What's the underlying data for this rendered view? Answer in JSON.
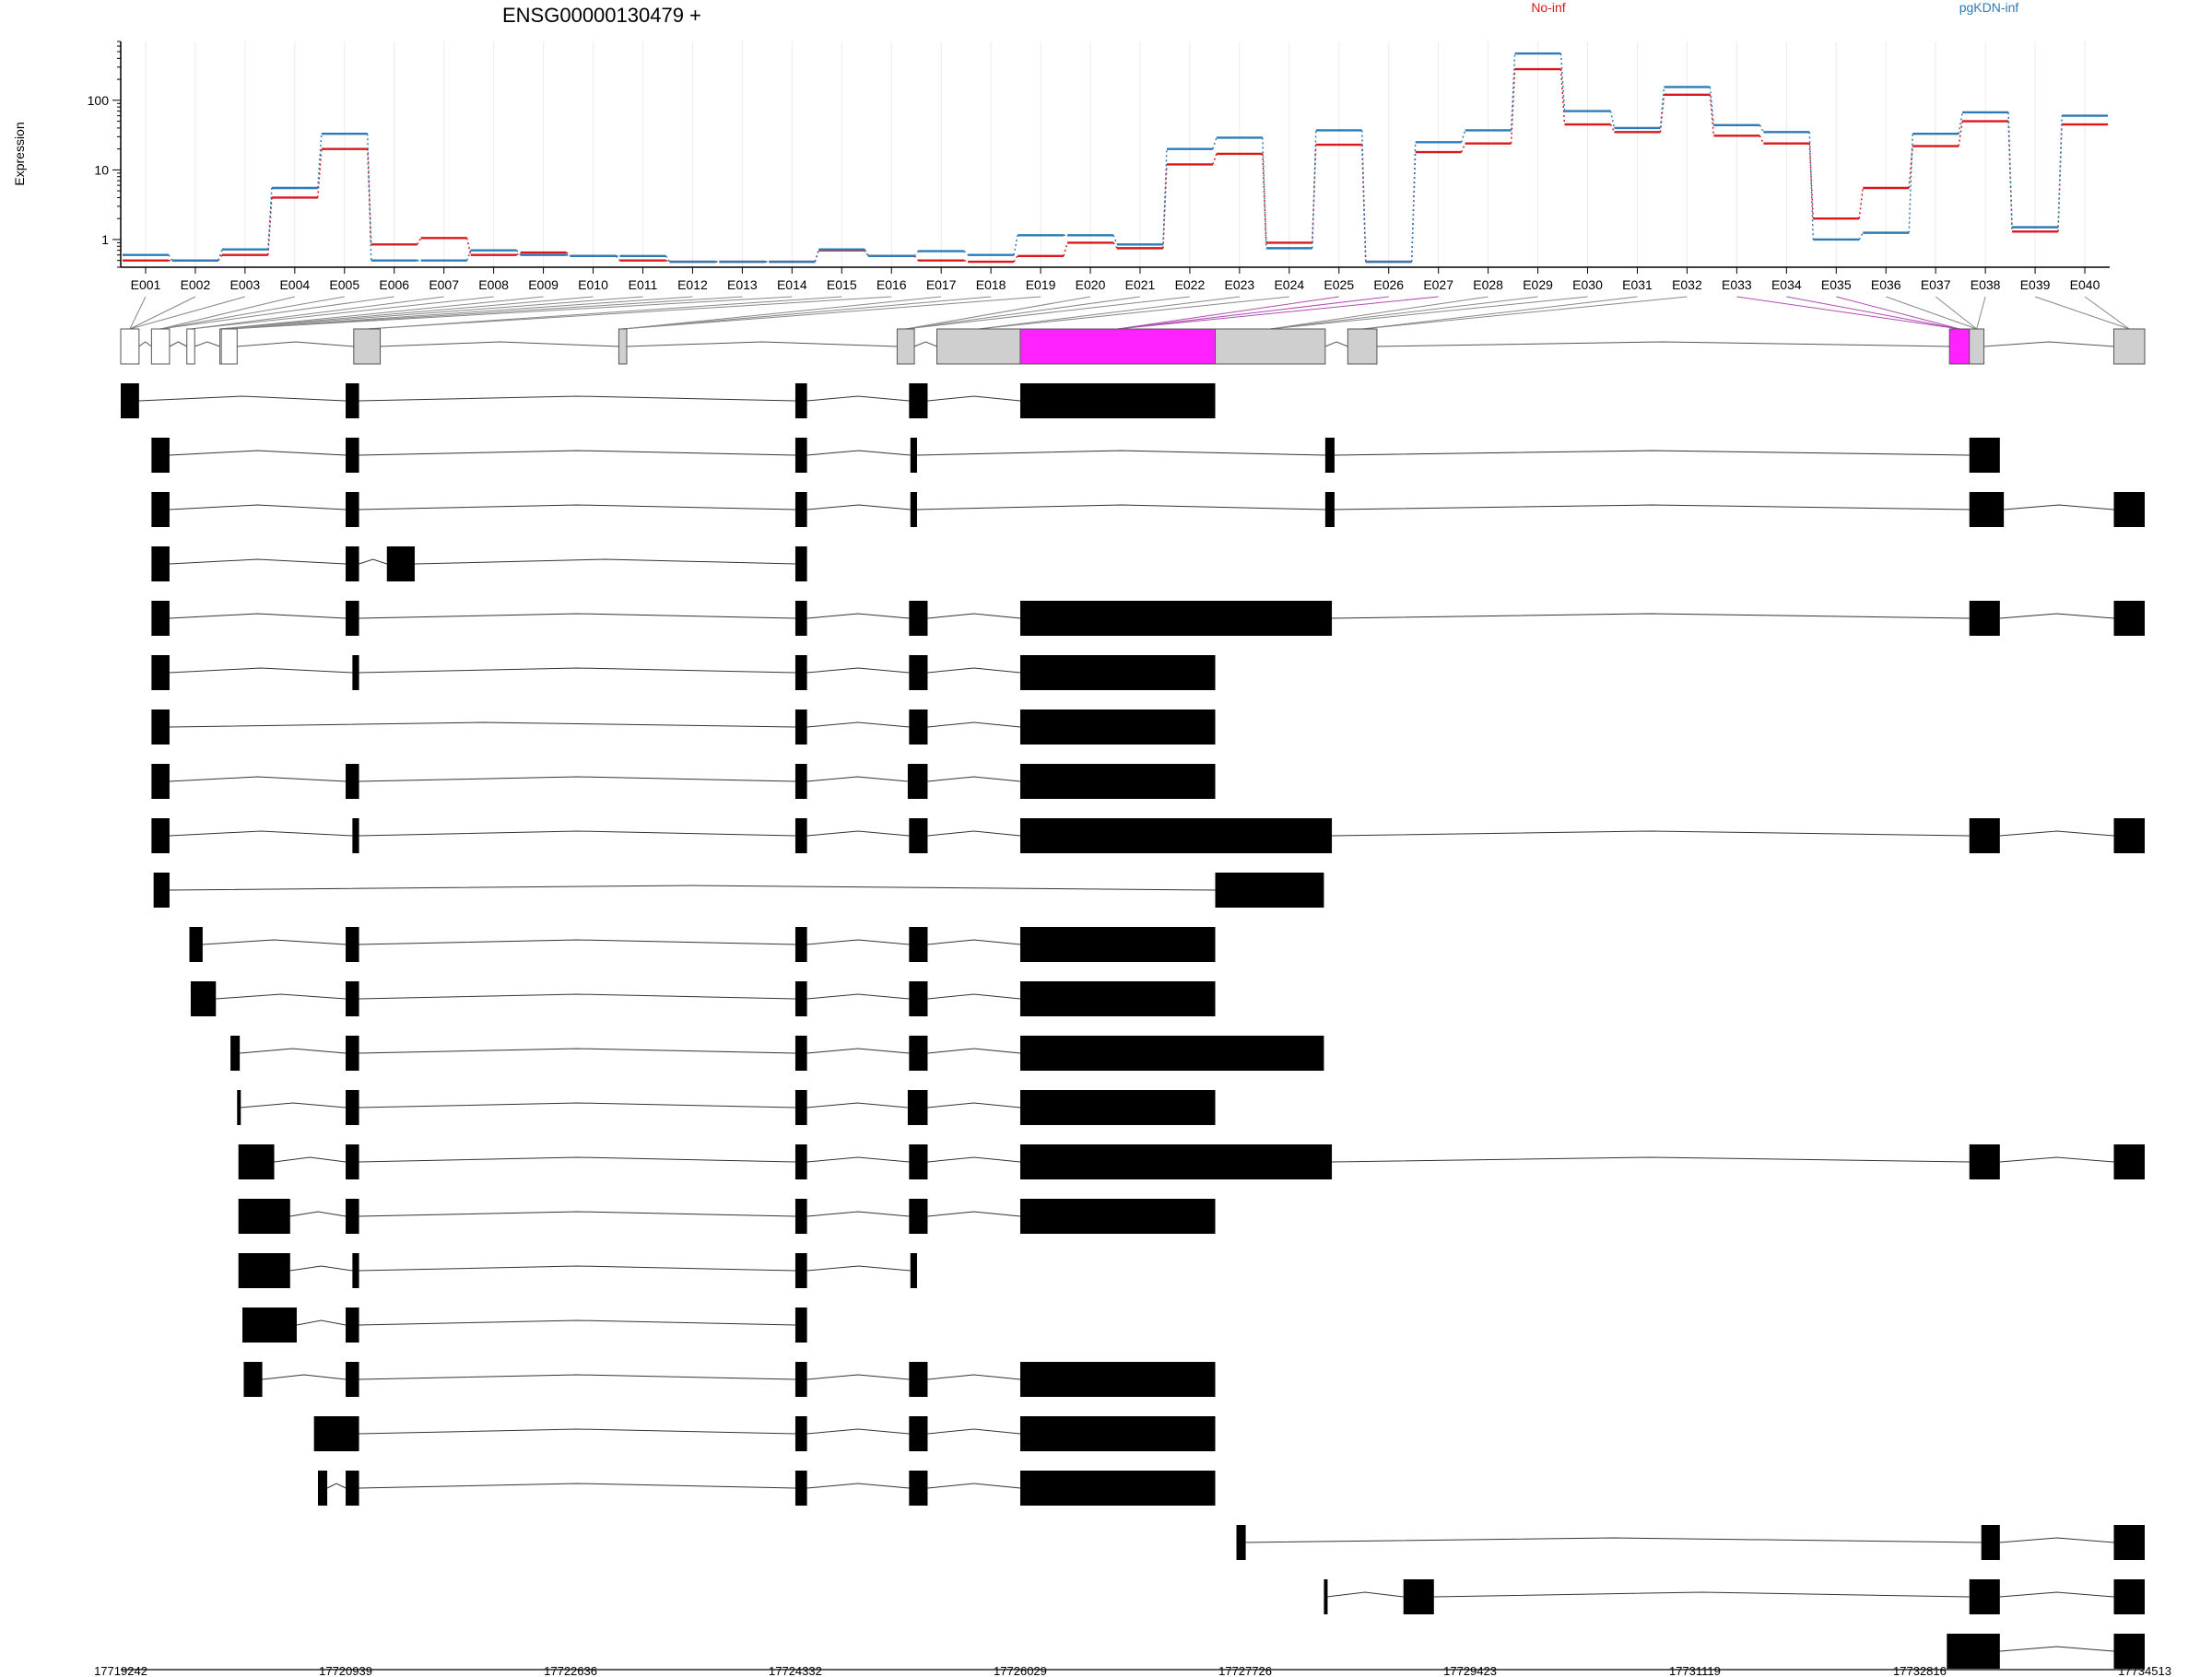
{
  "chart_data": {
    "type": "line",
    "title": "ENSG00000130479 +",
    "ylabel": "Expression",
    "yscale": "log",
    "yticks": [
      "1",
      "10",
      "100"
    ],
    "ylim": [
      0.4,
      700
    ],
    "legend_placement": "top",
    "exons": [
      "E001",
      "E002",
      "E003",
      "E004",
      "E005",
      "E006",
      "E007",
      "E008",
      "E009",
      "E010",
      "E011",
      "E012",
      "E013",
      "E014",
      "E015",
      "E016",
      "E017",
      "E018",
      "E019",
      "E020",
      "E021",
      "E022",
      "E023",
      "E024",
      "E025",
      "E026",
      "E027",
      "E028",
      "E029",
      "E030",
      "E031",
      "E032",
      "E033",
      "E034",
      "E035",
      "E036",
      "E037",
      "E038",
      "E039",
      "E040"
    ],
    "series": [
      {
        "name": "No-inf",
        "color": "#d7191c",
        "values": [
          0.5,
          0.5,
          0.6,
          4,
          20,
          0.85,
          1.05,
          0.6,
          0.65,
          0.58,
          0.5,
          0.48,
          0.48,
          0.48,
          0.7,
          0.58,
          0.5,
          0.48,
          0.58,
          0.9,
          0.75,
          12,
          17,
          0.9,
          23,
          0.48,
          18,
          24,
          280,
          45,
          35,
          120,
          31,
          24,
          2,
          5.5,
          22,
          50,
          1.3,
          45
        ]
      },
      {
        "name": "pgKDN-inf",
        "color": "#2c7bb6",
        "values": [
          0.6,
          0.5,
          0.72,
          5.5,
          33,
          0.5,
          0.5,
          0.7,
          0.6,
          0.58,
          0.58,
          0.48,
          0.48,
          0.48,
          0.72,
          0.58,
          0.68,
          0.6,
          1.15,
          1.15,
          0.85,
          20,
          29,
          0.75,
          37,
          0.48,
          25,
          37,
          470,
          70,
          40,
          155,
          44,
          35,
          1,
          1.25,
          33,
          67,
          1.5,
          60
        ]
      }
    ],
    "genome_start": 17719242,
    "genome_end": 17734513,
    "x_ticks": [
      "17719242",
      "17720939",
      "17722636",
      "17724332",
      "17726029",
      "17727726",
      "17729423",
      "17731119",
      "17732816",
      "17734513"
    ],
    "exon_genomic": [
      [
        17719242,
        17719380
      ],
      [
        17719474,
        17719610
      ],
      [
        17719741,
        17719800
      ],
      [
        17719990,
        17720000
      ],
      [
        17720001,
        17720120
      ],
      [
        17721000,
        17721200
      ],
      [
        17723000,
        17723060
      ],
      [
        17725100,
        17725230
      ],
      [
        17725400,
        17726029
      ],
      [
        17726029,
        17727500
      ],
      [
        17727500,
        17728330
      ],
      [
        17728500,
        17728720
      ],
      [
        17733040,
        17733190
      ],
      [
        17733190,
        17733300
      ],
      [
        17734280,
        17734513
      ]
    ],
    "exon_highlight": [
      9,
      12
    ],
    "transcripts": [
      [
        [
          17719242,
          17719380
        ],
        [
          17720939,
          17721040
        ],
        [
          17724332,
          17724420
        ],
        [
          17725190,
          17725330
        ],
        [
          17726029,
          17727500
        ]
      ],
      [
        [
          17719474,
          17719610
        ],
        [
          17720939,
          17721040
        ],
        [
          17724332,
          17724420
        ],
        [
          17725200,
          17725250
        ],
        [
          17728330,
          17728400
        ],
        [
          17733190,
          17733420
        ]
      ],
      [
        [
          17719474,
          17719610
        ],
        [
          17720939,
          17721040
        ],
        [
          17724332,
          17724420
        ],
        [
          17725200,
          17725250
        ],
        [
          17728330,
          17728400
        ],
        [
          17733190,
          17733450
        ],
        [
          17734280,
          17734513
        ]
      ],
      [
        [
          17719474,
          17719610
        ],
        [
          17720939,
          17721040
        ],
        [
          17721250,
          17721460
        ],
        [
          17724332,
          17724420
        ]
      ],
      [
        [
          17719474,
          17719610
        ],
        [
          17720939,
          17721040
        ],
        [
          17724332,
          17724420
        ],
        [
          17725190,
          17725330
        ],
        [
          17726029,
          17728380
        ],
        [
          17733190,
          17733420
        ],
        [
          17734280,
          17734513
        ]
      ],
      [
        [
          17719474,
          17719610
        ],
        [
          17720990,
          17721040
        ],
        [
          17724332,
          17724420
        ],
        [
          17725190,
          17725330
        ],
        [
          17726029,
          17727500
        ]
      ],
      [
        [
          17719474,
          17719610
        ],
        [
          17724332,
          17724420
        ],
        [
          17725190,
          17725330
        ],
        [
          17726029,
          17727500
        ]
      ],
      [
        [
          17719474,
          17719610
        ],
        [
          17720939,
          17721040
        ],
        [
          17724332,
          17724420
        ],
        [
          17725180,
          17725330
        ],
        [
          17726029,
          17727500
        ]
      ],
      [
        [
          17719474,
          17719610
        ],
        [
          17720990,
          17721040
        ],
        [
          17724332,
          17724420
        ],
        [
          17725190,
          17725330
        ],
        [
          17726029,
          17728380
        ],
        [
          17733190,
          17733420
        ],
        [
          17734280,
          17734513
        ]
      ],
      [
        [
          17719490,
          17719610
        ],
        [
          17727500,
          17728320
        ]
      ],
      [
        [
          17719760,
          17719860
        ],
        [
          17720939,
          17721040
        ],
        [
          17724332,
          17724420
        ],
        [
          17725190,
          17725330
        ],
        [
          17726029,
          17727500
        ]
      ],
      [
        [
          17719770,
          17719960
        ],
        [
          17720939,
          17721040
        ],
        [
          17724332,
          17724420
        ],
        [
          17725190,
          17725330
        ],
        [
          17726029,
          17727500
        ]
      ],
      [
        [
          17720070,
          17720140
        ],
        [
          17720939,
          17721040
        ],
        [
          17724332,
          17724420
        ],
        [
          17725190,
          17725330
        ],
        [
          17726029,
          17728320
        ]
      ],
      [
        [
          17720120,
          17720145
        ],
        [
          17720939,
          17721040
        ],
        [
          17724332,
          17724420
        ],
        [
          17725180,
          17725330
        ],
        [
          17726029,
          17727500
        ]
      ],
      [
        [
          17720130,
          17720400
        ],
        [
          17720939,
          17721040
        ],
        [
          17724332,
          17724420
        ],
        [
          17725190,
          17725330
        ],
        [
          17726029,
          17728380
        ],
        [
          17733190,
          17733420
        ],
        [
          17734280,
          17734513
        ]
      ],
      [
        [
          17720130,
          17720520
        ],
        [
          17720939,
          17721040
        ],
        [
          17724332,
          17724420
        ],
        [
          17725190,
          17725330
        ],
        [
          17726029,
          17727500
        ]
      ],
      [
        [
          17720130,
          17720520
        ],
        [
          17720990,
          17721040
        ],
        [
          17724332,
          17724420
        ],
        [
          17725200,
          17725250
        ]
      ],
      [
        [
          17720160,
          17720570
        ],
        [
          17720939,
          17721040
        ],
        [
          17724332,
          17724420
        ]
      ],
      [
        [
          17720170,
          17720310
        ],
        [
          17720939,
          17721040
        ],
        [
          17724332,
          17724420
        ],
        [
          17725190,
          17725330
        ],
        [
          17726029,
          17727500
        ]
      ],
      [
        [
          17720700,
          17721040
        ],
        [
          17724332,
          17724420
        ],
        [
          17725190,
          17725330
        ],
        [
          17726029,
          17727500
        ]
      ],
      [
        [
          17720730,
          17720800
        ],
        [
          17720939,
          17721040
        ],
        [
          17724332,
          17724420
        ],
        [
          17725190,
          17725330
        ],
        [
          17726029,
          17727500
        ]
      ],
      [
        [
          17727660,
          17727730
        ],
        [
          17733280,
          17733420
        ],
        [
          17734280,
          17734513
        ]
      ],
      [
        [
          17728320,
          17728340
        ],
        [
          17728920,
          17729150
        ],
        [
          17733190,
          17733420
        ],
        [
          17734280,
          17734513
        ]
      ],
      [
        [
          17733020,
          17733420
        ],
        [
          17734280,
          17734513
        ]
      ]
    ]
  }
}
